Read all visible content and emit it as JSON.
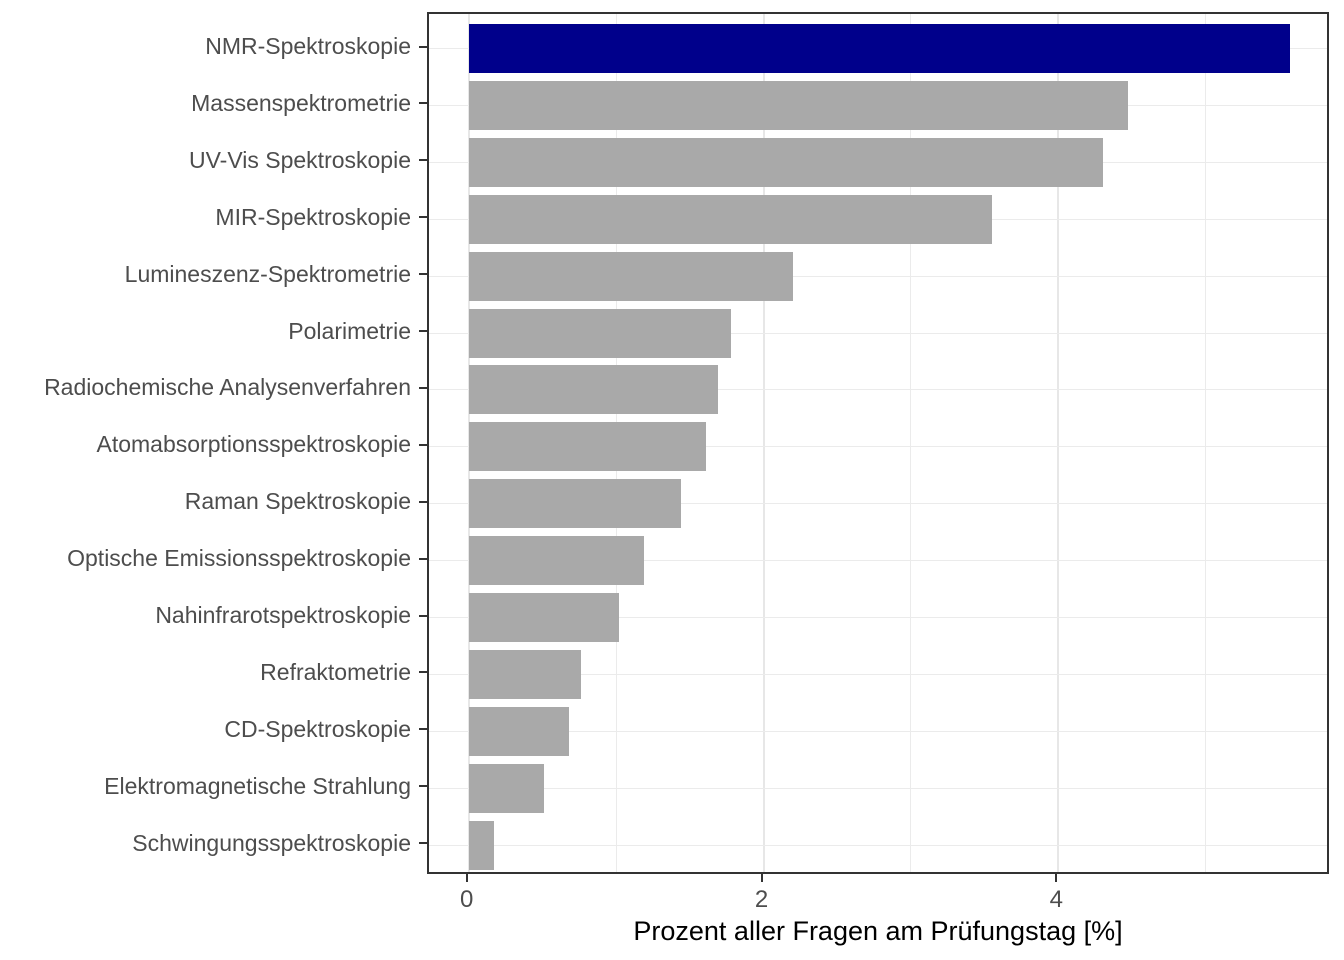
{
  "chart_data": {
    "type": "bar",
    "orientation": "horizontal",
    "title": "",
    "xlabel": "Prozent aller Fragen am Prüfungstag [%]",
    "ylabel": "",
    "categories": [
      "NMR-Spektroskopie",
      "Massenspektrometrie",
      "UV-Vis Spektroskopie",
      "MIR-Spektroskopie",
      "Lumineszenz-Spektrometrie",
      "Polarimetrie",
      "Radiochemische Analysenverfahren",
      "Atomabsorptionsspektroskopie",
      "Raman Spektroskopie",
      "Optische Emissionsspektroskopie",
      "Nahinfrarotspektroskopie",
      "Refraktometrie",
      "CD-Spektroskopie",
      "Elektromagnetische Strahlung",
      "Schwingungsspektroskopie"
    ],
    "values": [
      5.57,
      4.47,
      4.3,
      3.55,
      2.2,
      1.78,
      1.69,
      1.61,
      1.44,
      1.19,
      1.02,
      0.76,
      0.68,
      0.51,
      0.17
    ],
    "highlight_index": 0,
    "x_ticks": [
      0,
      2,
      4
    ],
    "x_gridlines": [
      0,
      1,
      2,
      3,
      4,
      5
    ],
    "x_major_gridlines": [
      0,
      2,
      4
    ],
    "xlim": [
      -0.27,
      5.85
    ],
    "grid": "on",
    "legend": "none",
    "colors": {
      "highlight_bar": "#00008B",
      "default_bar": "#A9A9A9",
      "gridline": "#EBEBEB",
      "panel_border": "#333333",
      "axis_text": "#4D4D4D",
      "axis_title": "#000000"
    }
  }
}
